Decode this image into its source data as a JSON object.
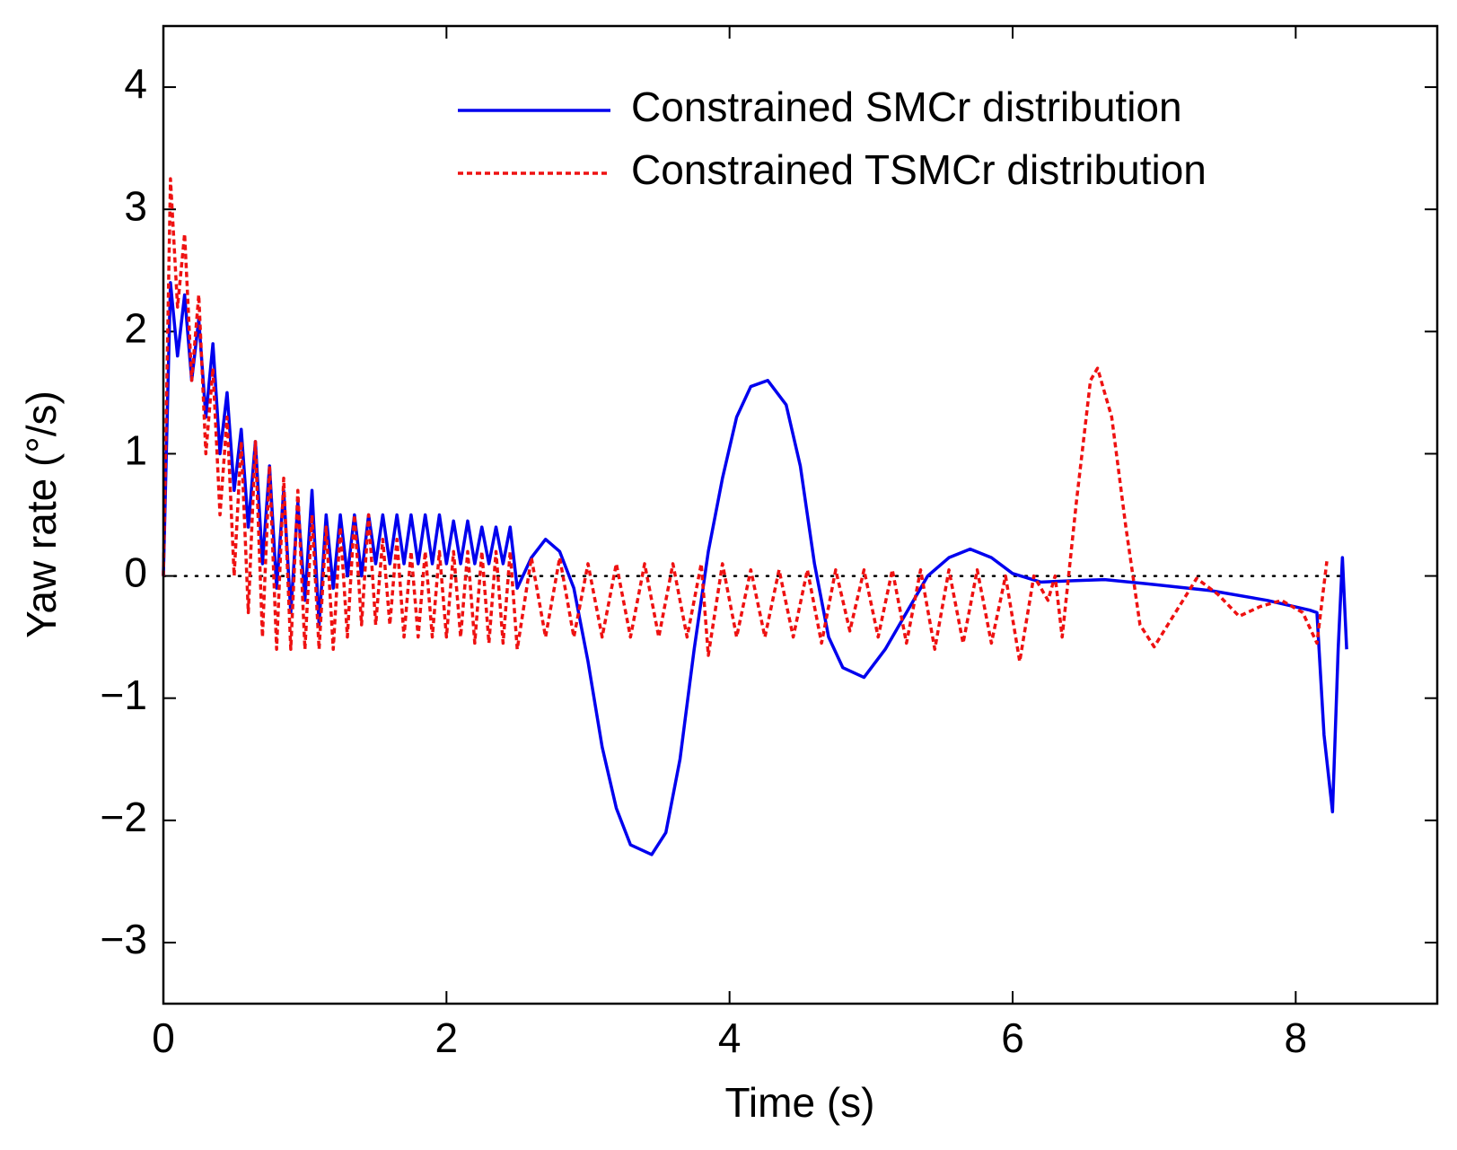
{
  "chart_data": {
    "type": "line",
    "xlabel": "Time (s)",
    "ylabel": "Yaw rate (°/s)",
    "xlim": [
      0,
      9
    ],
    "ylim": [
      -3.5,
      4.5
    ],
    "xticks": [
      0,
      2,
      4,
      6,
      8
    ],
    "yticks": [
      {
        "value": -3,
        "label": "−3"
      },
      {
        "value": -2,
        "label": "−2"
      },
      {
        "value": -1,
        "label": "−1"
      },
      0,
      1,
      2,
      3,
      4
    ],
    "hline": 0,
    "legend": "upper right",
    "series": [
      {
        "name": "Constrained SMCr distribution",
        "color": "#0000ee",
        "style": "solid",
        "x": [
          0,
          0.05,
          0.1,
          0.15,
          0.2,
          0.25,
          0.3,
          0.35,
          0.4,
          0.45,
          0.5,
          0.55,
          0.6,
          0.65,
          0.7,
          0.75,
          0.8,
          0.85,
          0.9,
          0.95,
          1.0,
          1.05,
          1.1,
          1.15,
          1.2,
          1.25,
          1.3,
          1.35,
          1.4,
          1.45,
          1.5,
          1.55,
          1.6,
          1.65,
          1.7,
          1.75,
          1.8,
          1.85,
          1.9,
          1.95,
          2.0,
          2.05,
          2.1,
          2.15,
          2.2,
          2.25,
          2.3,
          2.35,
          2.4,
          2.45,
          2.5,
          2.6,
          2.7,
          2.8,
          2.9,
          3.0,
          3.1,
          3.2,
          3.3,
          3.45,
          3.55,
          3.65,
          3.75,
          3.85,
          3.95,
          4.05,
          4.15,
          4.27,
          4.4,
          4.5,
          4.6,
          4.7,
          4.8,
          4.95,
          5.1,
          5.25,
          5.4,
          5.55,
          5.7,
          5.85,
          6.0,
          6.2,
          6.4,
          6.65,
          7.0,
          7.4,
          7.8,
          8.1,
          8.15,
          8.2,
          8.26,
          8.3,
          8.33,
          8.36
        ],
        "values": [
          0,
          2.4,
          1.8,
          2.3,
          1.6,
          2.1,
          1.3,
          1.9,
          1.0,
          1.5,
          0.7,
          1.2,
          0.4,
          1.1,
          0.1,
          0.9,
          -0.1,
          0.7,
          -0.3,
          0.6,
          -0.2,
          0.7,
          -0.4,
          0.5,
          -0.1,
          0.5,
          0.0,
          0.5,
          0.0,
          0.5,
          0.1,
          0.5,
          0.1,
          0.5,
          0.1,
          0.5,
          0.1,
          0.5,
          0.1,
          0.5,
          0.1,
          0.45,
          0.1,
          0.45,
          0.1,
          0.4,
          0.1,
          0.4,
          0.1,
          0.4,
          -0.1,
          0.15,
          0.3,
          0.2,
          -0.1,
          -0.7,
          -1.4,
          -1.9,
          -2.2,
          -2.28,
          -2.1,
          -1.5,
          -0.6,
          0.2,
          0.8,
          1.3,
          1.55,
          1.6,
          1.4,
          0.9,
          0.1,
          -0.5,
          -0.75,
          -0.83,
          -0.6,
          -0.3,
          0.0,
          0.15,
          0.22,
          0.15,
          0.02,
          -0.05,
          -0.04,
          -0.03,
          -0.07,
          -0.12,
          -0.2,
          -0.28,
          -0.3,
          -1.3,
          -1.93,
          -0.6,
          0.15,
          -0.6
        ]
      },
      {
        "name": "Constrained TSMCr distribution",
        "color": "#ee1111",
        "style": "dotted",
        "x": [
          0,
          0.05,
          0.1,
          0.15,
          0.2,
          0.25,
          0.3,
          0.35,
          0.4,
          0.45,
          0.5,
          0.55,
          0.6,
          0.65,
          0.7,
          0.75,
          0.8,
          0.85,
          0.9,
          0.95,
          1.0,
          1.05,
          1.1,
          1.15,
          1.2,
          1.25,
          1.3,
          1.35,
          1.4,
          1.45,
          1.5,
          1.55,
          1.6,
          1.65,
          1.7,
          1.75,
          1.8,
          1.85,
          1.9,
          1.95,
          2.0,
          2.05,
          2.1,
          2.15,
          2.2,
          2.25,
          2.3,
          2.35,
          2.4,
          2.45,
          2.5,
          2.6,
          2.7,
          2.8,
          2.9,
          3.0,
          3.1,
          3.2,
          3.3,
          3.4,
          3.5,
          3.6,
          3.7,
          3.8,
          3.85,
          3.95,
          4.05,
          4.15,
          4.25,
          4.35,
          4.45,
          4.55,
          4.65,
          4.75,
          4.85,
          4.95,
          5.05,
          5.15,
          5.25,
          5.35,
          5.45,
          5.55,
          5.65,
          5.75,
          5.85,
          5.95,
          6.05,
          6.15,
          6.25,
          6.3,
          6.35,
          6.45,
          6.55,
          6.6,
          6.7,
          6.8,
          6.9,
          7.0,
          7.15,
          7.3,
          7.45,
          7.6,
          7.75,
          7.9,
          8.05,
          8.15,
          8.22
        ],
        "values": [
          0,
          3.25,
          2.2,
          2.8,
          1.6,
          2.3,
          1.0,
          1.7,
          0.5,
          1.3,
          0.0,
          1.1,
          -0.3,
          1.1,
          -0.5,
          0.9,
          -0.6,
          0.8,
          -0.6,
          0.7,
          -0.6,
          0.5,
          -0.6,
          0.4,
          -0.6,
          0.4,
          -0.5,
          0.5,
          -0.4,
          0.5,
          -0.4,
          0.3,
          -0.4,
          0.3,
          -0.5,
          0.2,
          -0.5,
          0.2,
          -0.5,
          0.2,
          -0.5,
          0.2,
          -0.5,
          0.2,
          -0.55,
          0.2,
          -0.55,
          0.2,
          -0.55,
          0.2,
          -0.6,
          0.15,
          -0.5,
          0.15,
          -0.5,
          0.1,
          -0.5,
          0.1,
          -0.5,
          0.1,
          -0.5,
          0.1,
          -0.5,
          0.1,
          -0.65,
          0.1,
          -0.5,
          0.05,
          -0.5,
          0.05,
          -0.5,
          0.05,
          -0.55,
          0.05,
          -0.45,
          0.05,
          -0.5,
          0.05,
          -0.55,
          0.05,
          -0.6,
          0.05,
          -0.55,
          0.05,
          -0.55,
          0.0,
          -0.7,
          0.0,
          -0.2,
          0.0,
          -0.5,
          0.6,
          1.6,
          1.7,
          1.3,
          0.4,
          -0.4,
          -0.58,
          -0.3,
          -0.02,
          -0.15,
          -0.33,
          -0.25,
          -0.2,
          -0.3,
          -0.55,
          0.12
        ]
      }
    ]
  }
}
